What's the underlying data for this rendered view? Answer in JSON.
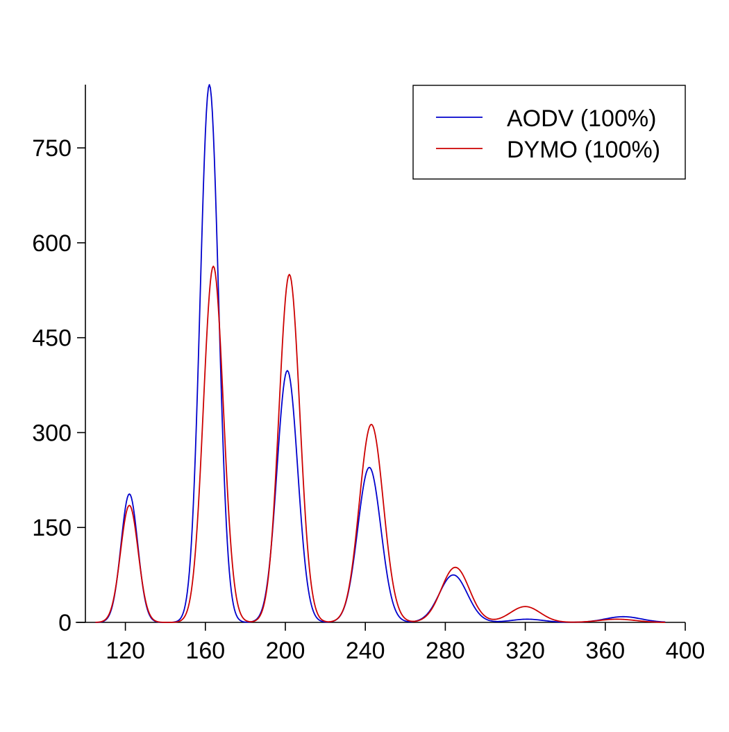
{
  "chart_data": {
    "type": "line",
    "title": "",
    "xlabel": "",
    "ylabel": "",
    "xlim": [
      100,
      400
    ],
    "ylim": [
      0,
      850
    ],
    "x_ticks": [
      120,
      160,
      200,
      240,
      280,
      320,
      360,
      400
    ],
    "x_tick_labels": [
      "120",
      "160",
      "200",
      "240",
      "280",
      "320",
      "360",
      "400"
    ],
    "y_ticks": [
      0,
      150,
      300,
      450,
      600,
      750
    ],
    "y_tick_labels": [
      "0",
      "150",
      "300",
      "450",
      "600",
      "750"
    ],
    "grid": false,
    "legend_position": "top-right",
    "series": [
      {
        "name": "AODV (100%)",
        "color": "#0000cc",
        "peaks": [
          {
            "x": 122,
            "y": 203,
            "sigma": 4.2
          },
          {
            "x": 162,
            "y": 850,
            "sigma": 4.6
          },
          {
            "x": 201,
            "y": 398,
            "sigma": 5.2
          },
          {
            "x": 242,
            "y": 245,
            "sigma": 5.8
          },
          {
            "x": 284,
            "y": 75,
            "sigma": 7.0
          },
          {
            "x": 321,
            "y": 5,
            "sigma": 8.0
          },
          {
            "x": 369,
            "y": 9,
            "sigma": 9.0
          }
        ]
      },
      {
        "name": "DYMO (100%)",
        "color": "#cc0000",
        "peaks": [
          {
            "x": 122,
            "y": 185,
            "sigma": 4.4
          },
          {
            "x": 164,
            "y": 563,
            "sigma": 5.0
          },
          {
            "x": 202,
            "y": 550,
            "sigma": 5.2
          },
          {
            "x": 243,
            "y": 313,
            "sigma": 6.0
          },
          {
            "x": 285,
            "y": 87,
            "sigma": 7.0
          },
          {
            "x": 320,
            "y": 25,
            "sigma": 7.5
          },
          {
            "x": 366,
            "y": 5,
            "sigma": 9.0
          }
        ]
      }
    ]
  }
}
